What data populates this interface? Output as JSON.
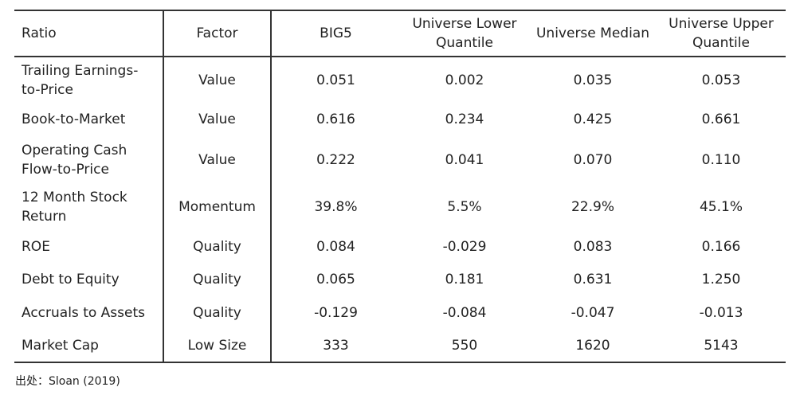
{
  "table": {
    "header": [
      "Ratio",
      "Factor",
      "BIG5",
      "Universe Lower Quantile",
      "Universe Median",
      "Universe Upper Quantile"
    ],
    "rows": [
      [
        "Trailing Earnings-to-Price",
        "Value",
        "0.051",
        "0.002",
        "0.035",
        "0.053"
      ],
      [
        "Book-to-Market",
        "Value",
        "0.616",
        "0.234",
        "0.425",
        "0.661"
      ],
      [
        "Operating Cash Flow-to-Price",
        "Value",
        "0.222",
        "0.041",
        "0.070",
        "0.110"
      ],
      [
        "12 Month Stock Return",
        "Momentum",
        "39.8%",
        "5.5%",
        "22.9%",
        "45.1%"
      ],
      [
        "ROE",
        "Quality",
        "0.084",
        "-0.029",
        "0.083",
        "0.166"
      ],
      [
        "Debt to Equity",
        "Quality",
        "0.065",
        "0.181",
        "0.631",
        "1.250"
      ],
      [
        "Accruals to Assets",
        "Quality",
        "-0.129",
        "-0.084",
        "-0.047",
        "-0.013"
      ],
      [
        "Market Cap",
        "Low Size",
        "333",
        "550",
        "1620",
        "5143"
      ]
    ]
  },
  "footer": {
    "source": "出处：Sloan (2019)"
  }
}
